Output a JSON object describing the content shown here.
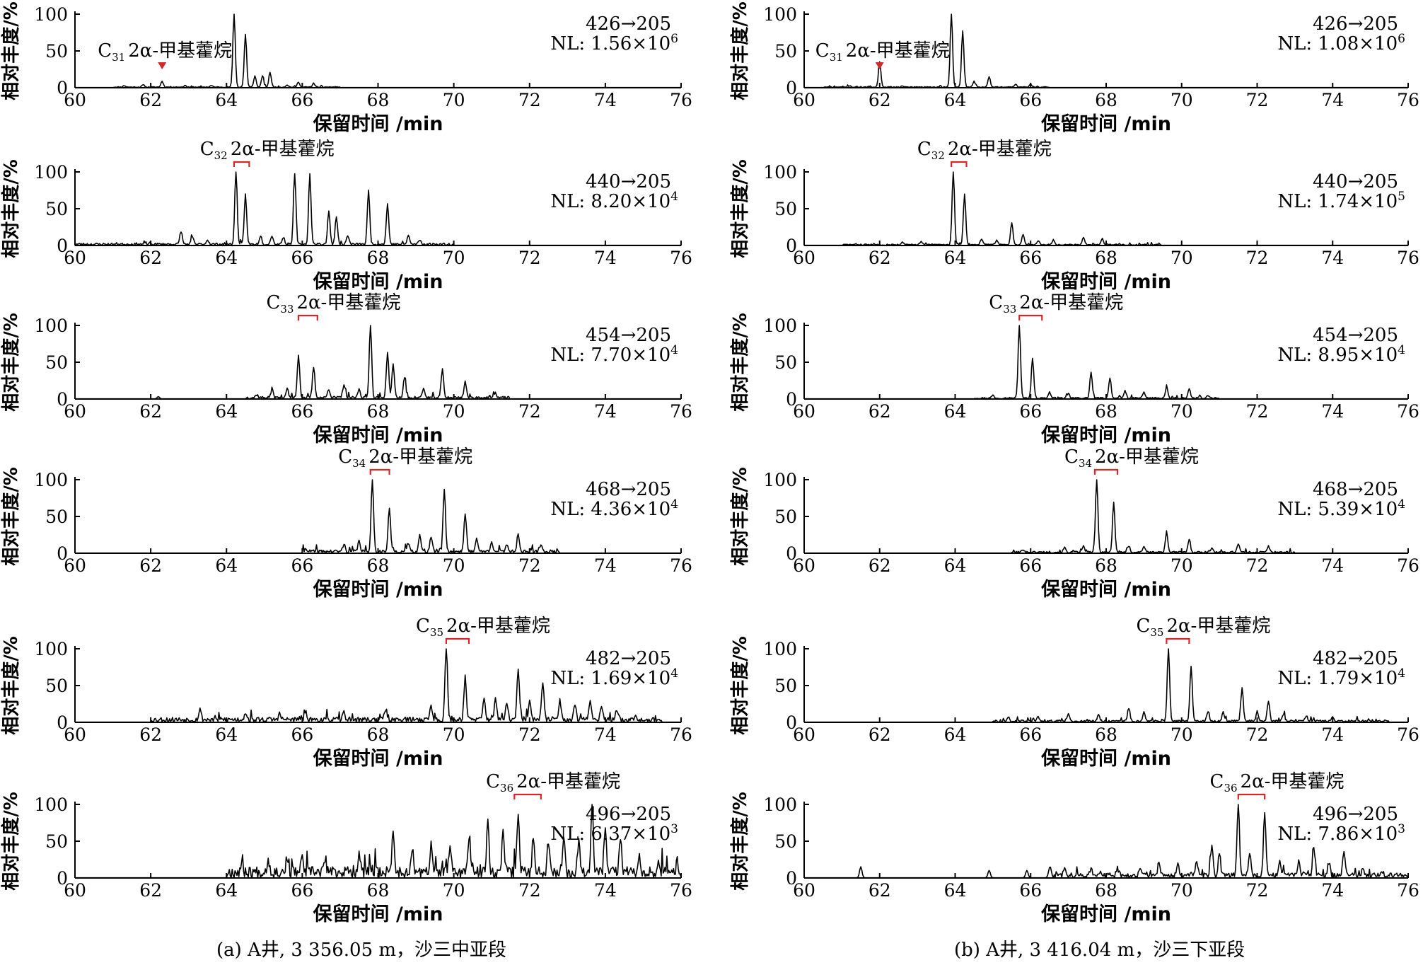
{
  "captions": {
    "a": "(a) A井, 3 356.05 m，沙三中亚段",
    "b": "(b) A井, 3 416.04 m，沙三下亚段"
  },
  "colors": {
    "axis": "#000000",
    "trace": "#000000",
    "marker": "#d62728"
  },
  "chart_data": [
    {
      "type": "line",
      "panel": "a1",
      "column": "a",
      "row": 1,
      "ylabel": "相对丰度/%",
      "xlabel": "保留时间 /min",
      "xlim": [
        60,
        76
      ],
      "ylim": [
        0,
        100
      ],
      "xticks": [
        60,
        62,
        64,
        66,
        68,
        70,
        72,
        74,
        76
      ],
      "yticks": [
        0,
        50,
        100
      ],
      "transition": "426→205",
      "nl_prefix": "NL: ",
      "nl_mantissa": "1.56×10",
      "nl_exponent": "6",
      "compound": {
        "c_num": "31",
        "name": "2α-甲基藿烷",
        "marker": "triangle",
        "mark_x": [
          62.3
        ]
      },
      "peaks": [
        [
          61.3,
          2
        ],
        [
          61.8,
          3
        ],
        [
          62.3,
          8
        ],
        [
          62.9,
          2
        ],
        [
          63.6,
          2
        ],
        [
          64.2,
          100
        ],
        [
          64.5,
          72
        ],
        [
          64.75,
          15
        ],
        [
          64.95,
          15
        ],
        [
          65.15,
          20
        ],
        [
          65.6,
          3
        ],
        [
          65.9,
          7
        ],
        [
          66.3,
          5
        ]
      ],
      "noise": {
        "start": 61.0,
        "end": 67.0,
        "amp": 1.2,
        "seed": 11
      }
    },
    {
      "type": "line",
      "panel": "a2",
      "column": "a",
      "row": 2,
      "ylabel": "相对丰度/%",
      "xlabel": "保留时间 /min",
      "xlim": [
        60,
        76
      ],
      "ylim": [
        0,
        100
      ],
      "xticks": [
        60,
        62,
        64,
        66,
        68,
        70,
        72,
        74,
        76
      ],
      "yticks": [
        0,
        50,
        100
      ],
      "transition": "440→205",
      "nl_prefix": "NL: ",
      "nl_mantissa": "8.20×10",
      "nl_exponent": "4",
      "compound": {
        "c_num": "32",
        "name": "2α-甲基藿烷",
        "marker": "bracket",
        "mark_x": [
          64.2,
          64.6
        ]
      },
      "peaks": [
        [
          62.8,
          18
        ],
        [
          63.1,
          10
        ],
        [
          63.5,
          6
        ],
        [
          64.25,
          100
        ],
        [
          64.5,
          68
        ],
        [
          64.9,
          12
        ],
        [
          65.2,
          12
        ],
        [
          65.5,
          10
        ],
        [
          65.8,
          96
        ],
        [
          66.2,
          95
        ],
        [
          66.7,
          45
        ],
        [
          66.9,
          38
        ],
        [
          67.2,
          12
        ],
        [
          67.75,
          73
        ],
        [
          68.25,
          55
        ],
        [
          68.8,
          12
        ],
        [
          69.1,
          6
        ]
      ],
      "noise": {
        "start": 60.0,
        "end": 70.0,
        "amp": 3.0,
        "seed": 23
      }
    },
    {
      "type": "line",
      "panel": "a3",
      "column": "a",
      "row": 3,
      "ylabel": "相对丰度/%",
      "xlabel": "保留时间 /min",
      "xlim": [
        60,
        76
      ],
      "ylim": [
        0,
        100
      ],
      "xticks": [
        60,
        62,
        64,
        66,
        68,
        70,
        72,
        74,
        76
      ],
      "yticks": [
        0,
        50,
        100
      ],
      "transition": "454→205",
      "nl_prefix": "NL: ",
      "nl_mantissa": "7.70×10",
      "nl_exponent": "4",
      "compound": {
        "c_num": "33",
        "name": "2α-甲基藿烷",
        "marker": "bracket",
        "mark_x": [
          65.9,
          66.4
        ]
      },
      "peaks": [
        [
          62.2,
          3
        ],
        [
          64.8,
          4
        ],
        [
          65.2,
          10
        ],
        [
          65.6,
          12
        ],
        [
          65.9,
          58
        ],
        [
          66.3,
          42
        ],
        [
          66.7,
          12
        ],
        [
          67.1,
          18
        ],
        [
          67.5,
          12
        ],
        [
          67.8,
          100
        ],
        [
          68.25,
          62
        ],
        [
          68.4,
          45
        ],
        [
          68.7,
          28
        ],
        [
          69.2,
          12
        ],
        [
          69.7,
          38
        ],
        [
          70.3,
          22
        ],
        [
          71.1,
          6
        ]
      ],
      "noise": {
        "start": 64.5,
        "end": 71.5,
        "amp": 3.5,
        "seed": 37
      }
    },
    {
      "type": "line",
      "panel": "a4",
      "column": "a",
      "row": 4,
      "ylabel": "相对丰度/%",
      "xlabel": "保留时间 /min",
      "xlim": [
        60,
        76
      ],
      "ylim": [
        0,
        100
      ],
      "xticks": [
        60,
        62,
        64,
        66,
        68,
        70,
        72,
        74,
        76
      ],
      "yticks": [
        0,
        50,
        100
      ],
      "transition": "468→205",
      "nl_prefix": "NL: ",
      "nl_mantissa": "4.36×10",
      "nl_exponent": "4",
      "compound": {
        "c_num": "34",
        "name": "2α-甲基藿烷",
        "marker": "bracket",
        "mark_x": [
          67.8,
          68.3
        ]
      },
      "peaks": [
        [
          66.1,
          4
        ],
        [
          67.1,
          10
        ],
        [
          67.5,
          14
        ],
        [
          67.85,
          100
        ],
        [
          68.3,
          60
        ],
        [
          68.8,
          12
        ],
        [
          69.1,
          22
        ],
        [
          69.4,
          20
        ],
        [
          69.75,
          85
        ],
        [
          70.3,
          52
        ],
        [
          70.6,
          18
        ],
        [
          71.0,
          14
        ],
        [
          71.4,
          10
        ],
        [
          71.7,
          24
        ],
        [
          72.3,
          8
        ]
      ],
      "noise": {
        "start": 66.0,
        "end": 72.8,
        "amp": 4.5,
        "seed": 41
      }
    },
    {
      "type": "line",
      "panel": "a5",
      "column": "a",
      "row": 5,
      "ylabel": "相对丰度/%",
      "xlabel": "保留时间 /min",
      "xlim": [
        60,
        76
      ],
      "ylim": [
        0,
        100
      ],
      "xticks": [
        60,
        62,
        64,
        66,
        68,
        70,
        72,
        74,
        76
      ],
      "yticks": [
        0,
        50,
        100
      ],
      "transition": "482→205",
      "nl_prefix": "NL: ",
      "nl_mantissa": "1.69×10",
      "nl_exponent": "4",
      "compound": {
        "c_num": "35",
        "name": "2α-甲基藿烷",
        "marker": "bracket",
        "mark_x": [
          69.8,
          70.4
        ]
      },
      "peaks": [
        [
          63.3,
          14
        ],
        [
          64.5,
          10
        ],
        [
          65.4,
          8
        ],
        [
          66.1,
          8
        ],
        [
          67.1,
          10
        ],
        [
          68.2,
          14
        ],
        [
          69.4,
          20
        ],
        [
          69.8,
          100
        ],
        [
          70.3,
          60
        ],
        [
          70.8,
          28
        ],
        [
          71.1,
          30
        ],
        [
          71.4,
          22
        ],
        [
          71.7,
          68
        ],
        [
          72.0,
          25
        ],
        [
          72.35,
          50
        ],
        [
          72.8,
          28
        ],
        [
          73.2,
          20
        ],
        [
          73.6,
          28
        ],
        [
          73.9,
          20
        ],
        [
          74.3,
          14
        ],
        [
          74.8,
          8
        ]
      ],
      "noise": {
        "start": 62.0,
        "end": 75.5,
        "amp": 7,
        "seed": 53
      }
    },
    {
      "type": "line",
      "panel": "a6",
      "column": "a",
      "row": 6,
      "ylabel": "相对丰度/%",
      "xlabel": "保留时间 /min",
      "xlim": [
        60,
        76
      ],
      "ylim": [
        0,
        100
      ],
      "xticks": [
        60,
        62,
        64,
        66,
        68,
        70,
        72,
        74,
        76
      ],
      "yticks": [
        0,
        50,
        100
      ],
      "transition": "496→205",
      "nl_prefix": "NL: ",
      "nl_mantissa": "6.37×10",
      "nl_exponent": "3",
      "compound": {
        "c_num": "36",
        "name": "2α-甲基藿烷",
        "marker": "bracket",
        "mark_x": [
          71.6,
          72.3
        ]
      },
      "peaks": [
        [
          64.4,
          10
        ],
        [
          65.1,
          18
        ],
        [
          65.6,
          20
        ],
        [
          66.0,
          18
        ],
        [
          66.6,
          15
        ],
        [
          67.5,
          25
        ],
        [
          68.4,
          55
        ],
        [
          68.9,
          25
        ],
        [
          69.4,
          35
        ],
        [
          69.9,
          35
        ],
        [
          70.4,
          45
        ],
        [
          70.9,
          70
        ],
        [
          71.3,
          55
        ],
        [
          71.7,
          85
        ],
        [
          72.1,
          50
        ],
        [
          72.5,
          45
        ],
        [
          72.9,
          48
        ],
        [
          73.3,
          45
        ],
        [
          73.65,
          98
        ],
        [
          74.0,
          55
        ],
        [
          74.4,
          45
        ],
        [
          74.9,
          25
        ],
        [
          75.4,
          18
        ],
        [
          75.9,
          15
        ]
      ],
      "noise": {
        "start": 64.0,
        "end": 76.0,
        "amp": 16,
        "seed": 67
      }
    },
    {
      "type": "line",
      "panel": "b1",
      "column": "b",
      "row": 1,
      "ylabel": "相对丰度/%",
      "xlabel": "保留时间 /min",
      "xlim": [
        60,
        76
      ],
      "ylim": [
        0,
        100
      ],
      "xticks": [
        60,
        62,
        64,
        66,
        68,
        70,
        72,
        74,
        76
      ],
      "yticks": [
        0,
        50,
        100
      ],
      "transition": "426→205",
      "nl_prefix": "NL: ",
      "nl_mantissa": "1.08×10",
      "nl_exponent": "6",
      "compound": {
        "c_num": "31",
        "name": "2α-甲基藿烷",
        "marker": "triangle",
        "mark_x": [
          62.0
        ]
      },
      "peaks": [
        [
          61.2,
          2
        ],
        [
          62.0,
          35
        ],
        [
          62.6,
          2
        ],
        [
          63.9,
          100
        ],
        [
          64.2,
          76
        ],
        [
          64.5,
          8
        ],
        [
          64.9,
          14
        ],
        [
          65.6,
          4
        ],
        [
          66.0,
          4
        ]
      ],
      "noise": {
        "start": 60.5,
        "end": 66.5,
        "amp": 1.2,
        "seed": 71
      }
    },
    {
      "type": "line",
      "panel": "b2",
      "column": "b",
      "row": 2,
      "ylabel": "相对丰度/%",
      "xlabel": "保留时间 /min",
      "xlim": [
        60,
        76
      ],
      "ylim": [
        0,
        100
      ],
      "xticks": [
        60,
        62,
        64,
        66,
        68,
        70,
        72,
        74,
        76
      ],
      "yticks": [
        0,
        50,
        100
      ],
      "transition": "440→205",
      "nl_prefix": "NL: ",
      "nl_mantissa": "1.74×10",
      "nl_exponent": "5",
      "compound": {
        "c_num": "32",
        "name": "2α-甲基藿烷",
        "marker": "bracket",
        "mark_x": [
          63.9,
          64.3
        ]
      },
      "peaks": [
        [
          62.6,
          3
        ],
        [
          63.1,
          4
        ],
        [
          63.95,
          100
        ],
        [
          64.25,
          68
        ],
        [
          64.7,
          8
        ],
        [
          65.1,
          6
        ],
        [
          65.5,
          30
        ],
        [
          65.8,
          14
        ],
        [
          66.2,
          6
        ],
        [
          66.6,
          6
        ],
        [
          67.4,
          10
        ],
        [
          67.9,
          8
        ]
      ],
      "noise": {
        "start": 61.0,
        "end": 69.5,
        "amp": 1.8,
        "seed": 83
      }
    },
    {
      "type": "line",
      "panel": "b3",
      "column": "b",
      "row": 3,
      "ylabel": "相对丰度/%",
      "xlabel": "保留时间 /min",
      "xlim": [
        60,
        76
      ],
      "ylim": [
        0,
        100
      ],
      "xticks": [
        60,
        62,
        64,
        66,
        68,
        70,
        72,
        74,
        76
      ],
      "yticks": [
        0,
        50,
        100
      ],
      "transition": "454→205",
      "nl_prefix": "NL: ",
      "nl_mantissa": "8.95×10",
      "nl_exponent": "4",
      "compound": {
        "c_num": "33",
        "name": "2α-甲基藿烷",
        "marker": "bracket",
        "mark_x": [
          65.7,
          66.3
        ]
      },
      "peaks": [
        [
          65.0,
          4
        ],
        [
          65.7,
          100
        ],
        [
          66.05,
          55
        ],
        [
          66.5,
          8
        ],
        [
          67.0,
          6
        ],
        [
          67.6,
          35
        ],
        [
          68.1,
          28
        ],
        [
          68.5,
          10
        ],
        [
          69.0,
          8
        ],
        [
          69.6,
          14
        ],
        [
          70.2,
          12
        ],
        [
          70.7,
          4
        ]
      ],
      "noise": {
        "start": 64.5,
        "end": 71.0,
        "amp": 2,
        "seed": 97
      }
    },
    {
      "type": "line",
      "panel": "b4",
      "column": "b",
      "row": 4,
      "ylabel": "相对丰度/%",
      "xlabel": "保留时间 /min",
      "xlim": [
        60,
        76
      ],
      "ylim": [
        0,
        100
      ],
      "xticks": [
        60,
        62,
        64,
        66,
        68,
        70,
        72,
        74,
        76
      ],
      "yticks": [
        0,
        50,
        100
      ],
      "transition": "468→205",
      "nl_prefix": "NL: ",
      "nl_mantissa": "5.39×10",
      "nl_exponent": "4",
      "compound": {
        "c_num": "34",
        "name": "2α-甲基藿烷",
        "marker": "bracket",
        "mark_x": [
          67.7,
          68.3
        ]
      },
      "peaks": [
        [
          65.8,
          4
        ],
        [
          66.9,
          6
        ],
        [
          67.4,
          8
        ],
        [
          67.75,
          100
        ],
        [
          68.2,
          68
        ],
        [
          68.6,
          8
        ],
        [
          69.0,
          8
        ],
        [
          69.6,
          28
        ],
        [
          70.2,
          18
        ],
        [
          70.8,
          6
        ],
        [
          71.5,
          12
        ],
        [
          72.3,
          8
        ]
      ],
      "noise": {
        "start": 65.5,
        "end": 73.0,
        "amp": 2.5,
        "seed": 101
      }
    },
    {
      "type": "line",
      "panel": "b5",
      "column": "b",
      "row": 5,
      "ylabel": "相对丰度/%",
      "xlabel": "保留时间 /min",
      "xlim": [
        60,
        76
      ],
      "ylim": [
        0,
        100
      ],
      "xticks": [
        60,
        62,
        64,
        66,
        68,
        70,
        72,
        74,
        76
      ],
      "yticks": [
        0,
        50,
        100
      ],
      "transition": "482→205",
      "nl_prefix": "NL: ",
      "nl_mantissa": "1.79×10",
      "nl_exponent": "4",
      "compound": {
        "c_num": "35",
        "name": "2α-甲基藿烷",
        "marker": "bracket",
        "mark_x": [
          69.6,
          70.2
        ]
      },
      "peaks": [
        [
          65.4,
          6
        ],
        [
          66.2,
          6
        ],
        [
          67.0,
          8
        ],
        [
          67.8,
          8
        ],
        [
          68.6,
          18
        ],
        [
          69.0,
          12
        ],
        [
          69.65,
          100
        ],
        [
          70.25,
          75
        ],
        [
          70.7,
          14
        ],
        [
          71.1,
          12
        ],
        [
          71.6,
          45
        ],
        [
          72.0,
          12
        ],
        [
          72.3,
          28
        ],
        [
          72.7,
          10
        ],
        [
          73.3,
          8
        ],
        [
          74.0,
          6
        ]
      ],
      "noise": {
        "start": 65.0,
        "end": 75.5,
        "amp": 3,
        "seed": 113
      }
    },
    {
      "type": "line",
      "panel": "b6",
      "column": "b",
      "row": 6,
      "ylabel": "相对丰度/%",
      "xlabel": "保留时间 /min",
      "xlim": [
        60,
        76
      ],
      "ylim": [
        0,
        100
      ],
      "xticks": [
        60,
        62,
        64,
        66,
        68,
        70,
        72,
        74,
        76
      ],
      "yticks": [
        0,
        50,
        100
      ],
      "transition": "496→205",
      "nl_prefix": "NL: ",
      "nl_mantissa": "7.86×10",
      "nl_exponent": "3",
      "compound": {
        "c_num": "36",
        "name": "2α-甲基藿烷",
        "marker": "bracket",
        "mark_x": [
          71.5,
          72.2
        ]
      },
      "peaks": [
        [
          61.5,
          15
        ],
        [
          64.9,
          10
        ],
        [
          65.9,
          10
        ],
        [
          66.5,
          12
        ],
        [
          66.9,
          12
        ],
        [
          67.6,
          10
        ],
        [
          68.3,
          10
        ],
        [
          68.9,
          12
        ],
        [
          69.4,
          18
        ],
        [
          69.9,
          15
        ],
        [
          70.4,
          20
        ],
        [
          70.8,
          38
        ],
        [
          71.0,
          30
        ],
        [
          71.5,
          100
        ],
        [
          71.8,
          30
        ],
        [
          72.2,
          85
        ],
        [
          72.6,
          20
        ],
        [
          73.1,
          18
        ],
        [
          73.5,
          38
        ],
        [
          73.9,
          18
        ],
        [
          74.3,
          35
        ],
        [
          74.8,
          10
        ],
        [
          75.3,
          8
        ]
      ],
      "noise": {
        "start": 66.5,
        "end": 76.0,
        "amp": 7,
        "seed": 127
      }
    }
  ]
}
